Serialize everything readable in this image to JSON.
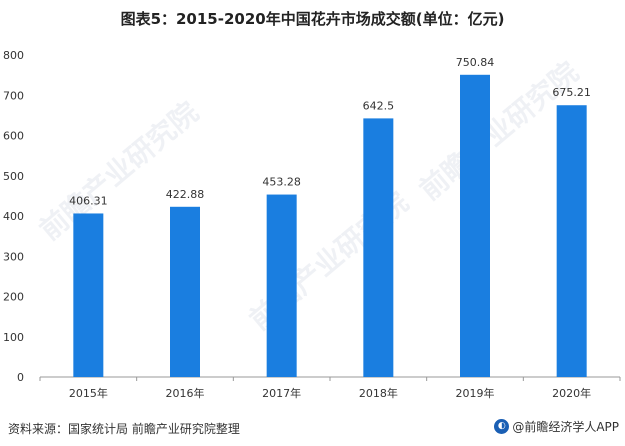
{
  "title": "图表5：2015-2020年中国花卉市场成交额(单位：亿元)",
  "footer": {
    "source": "资料来源：国家统计局 前瞻产业研究院整理",
    "brand": "@前瞻经济学人APP"
  },
  "watermark_text": "前瞻产业研究院",
  "colors": {
    "bar": "#1a7ee0",
    "axis": "#999999",
    "text": "#333333"
  },
  "chart_data": {
    "type": "bar",
    "title": "图表5：2015-2020年中国花卉市场成交额(单位：亿元)",
    "categories": [
      "2015年",
      "2016年",
      "2017年",
      "2018年",
      "2019年",
      "2020年"
    ],
    "values": [
      406.31,
      422.88,
      453.28,
      642.5,
      750.84,
      675.21
    ],
    "value_labels": [
      "406.31",
      "422.88",
      "453.28",
      "642.5",
      "750.84",
      "675.21"
    ],
    "ylim": [
      0,
      800
    ],
    "yticks": [
      0,
      100,
      200,
      300,
      400,
      500,
      600,
      700,
      800
    ],
    "xlabel": "",
    "ylabel": "",
    "grid": false
  }
}
